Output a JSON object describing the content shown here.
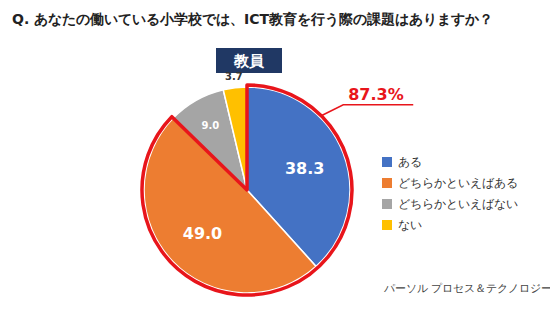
{
  "chart_data": {
    "type": "pie",
    "title": "Q. あなたの働いている小学校では、ICT教育を行う際の課題はありますか？",
    "subtitle": "教員",
    "categories": [
      "ある",
      "どちらかといえばある",
      "どちらかといえばない",
      "ない"
    ],
    "values": [
      38.3,
      49.0,
      9.0,
      3.7
    ],
    "value_labels": [
      "38.3",
      "49.0",
      "9.0",
      "3.7"
    ],
    "colors": [
      "#4472c4",
      "#ed7d31",
      "#a5a5a5",
      "#ffc000"
    ],
    "data_labels": true,
    "legend": "right",
    "annotation": {
      "text": "87.3%",
      "categories": [
        "ある",
        "どちらかといえばある"
      ]
    },
    "source": "パーソル プロセス＆テクノロジー"
  }
}
